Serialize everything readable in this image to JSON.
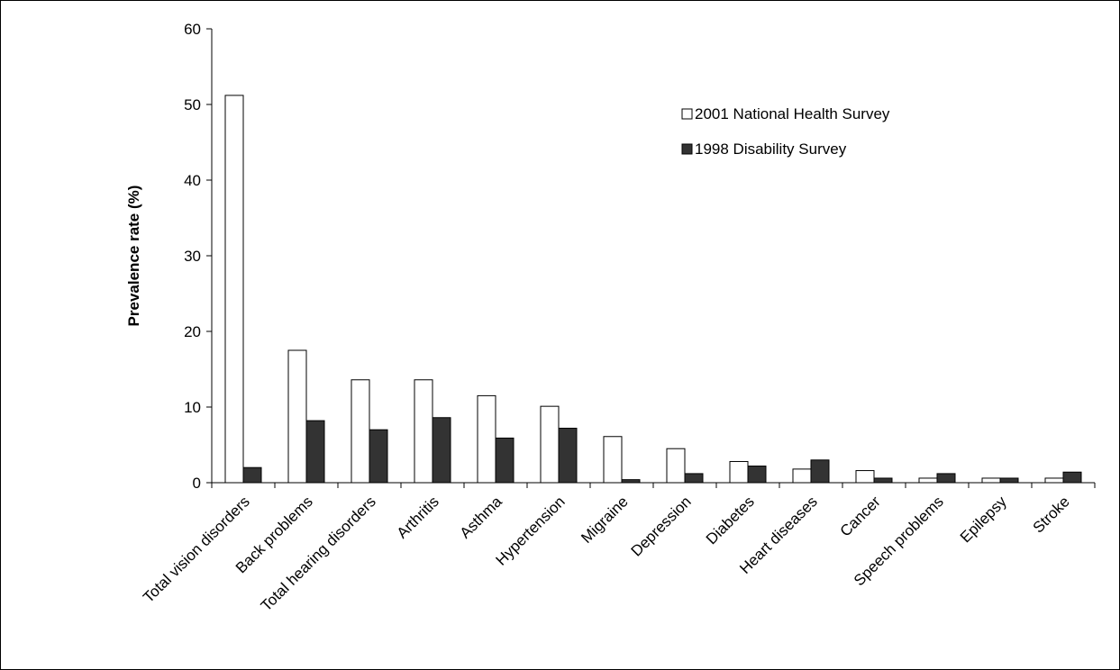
{
  "chart_data": {
    "type": "bar",
    "ylabel": "Prevalence rate (%)",
    "xlabel": "",
    "ylim": [
      0,
      60
    ],
    "yticks": [
      0,
      10,
      20,
      30,
      40,
      50,
      60
    ],
    "grid": false,
    "legend_position": "top-right",
    "categories": [
      "Total vision disorders",
      "Back problems",
      "Total hearing disorders",
      "Arthritis",
      "Asthma",
      "Hypertension",
      "Migraine",
      "Depression",
      "Diabetes",
      "Heart diseases",
      "Cancer",
      "Speech problems",
      "Epilepsy",
      "Stroke"
    ],
    "series": [
      {
        "name": "2001 National Health Survey",
        "color": "#ffffff",
        "values": [
          51.2,
          17.5,
          13.6,
          13.6,
          11.5,
          10.1,
          6.1,
          4.5,
          2.8,
          1.8,
          1.6,
          0.6,
          0.6,
          0.6
        ]
      },
      {
        "name": "1998 Disability Survey",
        "color": "#333333",
        "values": [
          2.0,
          8.2,
          7.0,
          8.6,
          5.9,
          7.2,
          0.4,
          1.2,
          2.2,
          3.0,
          0.6,
          1.2,
          0.6,
          1.4
        ]
      }
    ]
  }
}
